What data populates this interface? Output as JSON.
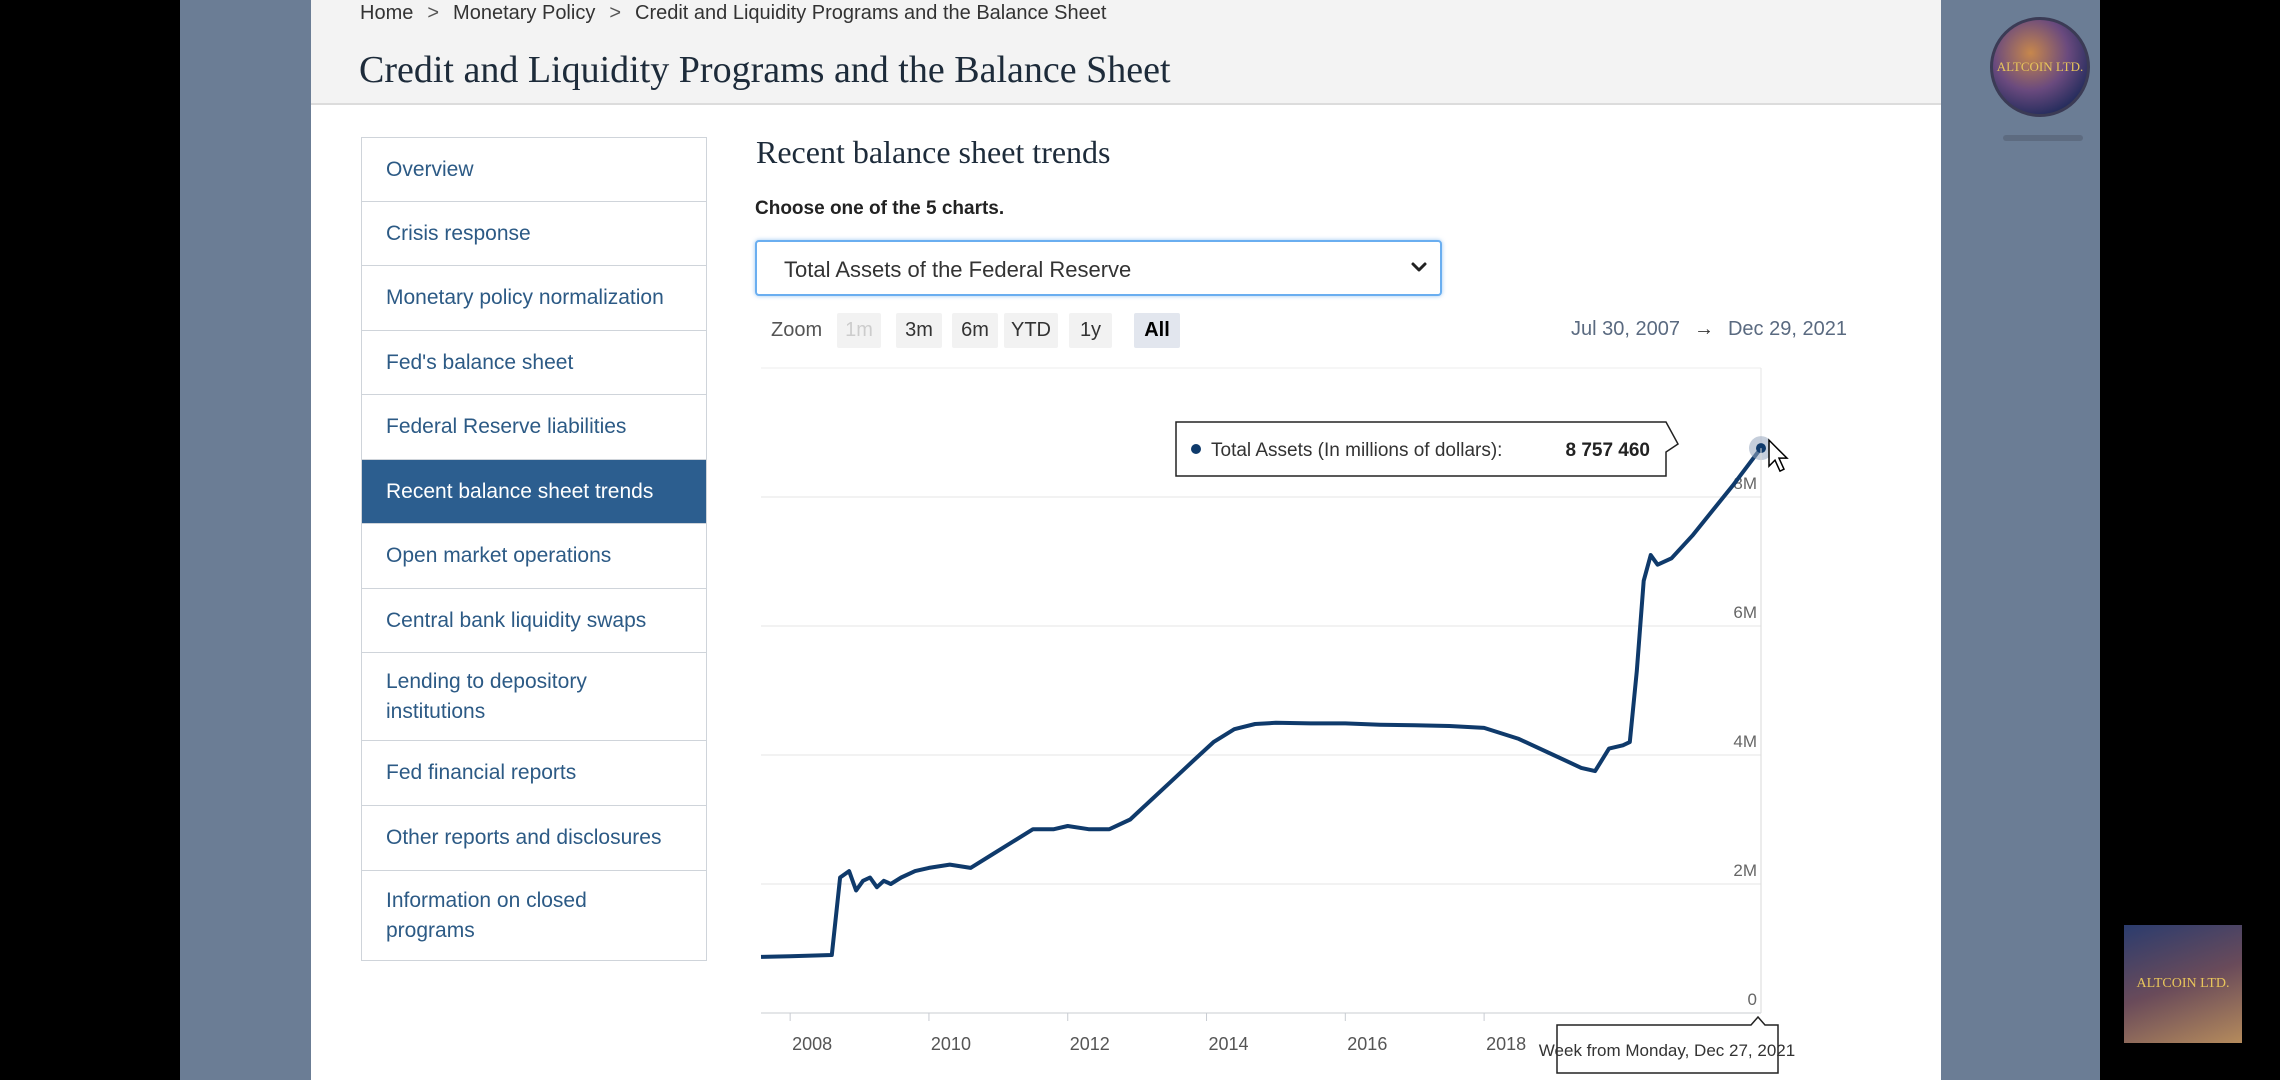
{
  "breadcrumb": [
    "Home",
    "Monetary Policy",
    "Credit and Liquidity Programs and the Balance Sheet"
  ],
  "page_title": "Credit and Liquidity Programs and the Balance Sheet",
  "sidebar": {
    "items": [
      {
        "label": "Overview",
        "active": false
      },
      {
        "label": "Crisis response",
        "active": false
      },
      {
        "label": "Monetary policy normalization",
        "active": false
      },
      {
        "label": "Fed's balance sheet",
        "active": false
      },
      {
        "label": "Federal Reserve liabilities",
        "active": false
      },
      {
        "label": "Recent balance sheet trends",
        "active": true
      },
      {
        "label": "Open market operations",
        "active": false
      },
      {
        "label": "Central bank liquidity swaps",
        "active": false
      },
      {
        "label": "Lending to depository institutions",
        "active": false
      },
      {
        "label": "Fed financial reports",
        "active": false
      },
      {
        "label": "Other reports and disclosures",
        "active": false
      },
      {
        "label": "Information on closed programs",
        "active": false
      }
    ]
  },
  "main": {
    "section_title": "Recent balance sheet trends",
    "choose_label": "Choose one of the 5 charts.",
    "select_value": "Total Assets of the Federal Reserve",
    "zoom_label": "Zoom",
    "zoom_buttons": [
      {
        "label": "1m",
        "state": "disabled"
      },
      {
        "label": "3m",
        "state": "normal"
      },
      {
        "label": "6m",
        "state": "normal"
      },
      {
        "label": "YTD",
        "state": "normal"
      },
      {
        "label": "1y",
        "state": "normal"
      },
      {
        "label": "All",
        "state": "active"
      }
    ],
    "date_from": "Jul 30, 2007",
    "date_arrow": "→",
    "date_to": "Dec 29, 2021"
  },
  "chart_data": {
    "type": "line",
    "title": "",
    "xlabel": "",
    "ylabel": "",
    "x_ticks": [
      "2008",
      "2010",
      "2012",
      "2014",
      "2016",
      "2018"
    ],
    "y_ticks": [
      "0",
      "2M",
      "4M",
      "6M",
      "8M"
    ],
    "xlim": [
      2007.58,
      2021.99
    ],
    "ylim": [
      0,
      10000000
    ],
    "grid": "horizontal",
    "legend": "none",
    "series_color": "#0f3a6b",
    "series": [
      {
        "name": "Total Assets (In millions of dollars)",
        "x": [
          2007.58,
          2008.0,
          2008.6,
          2008.72,
          2008.85,
          2008.95,
          2009.05,
          2009.15,
          2009.25,
          2009.35,
          2009.45,
          2009.6,
          2009.8,
          2010.0,
          2010.3,
          2010.6,
          2010.9,
          2011.2,
          2011.5,
          2011.8,
          2012.0,
          2012.3,
          2012.6,
          2012.9,
          2013.2,
          2013.5,
          2013.8,
          2014.1,
          2014.4,
          2014.7,
          2015.0,
          2015.5,
          2016.0,
          2016.5,
          2017.0,
          2017.5,
          2018.0,
          2018.5,
          2019.0,
          2019.4,
          2019.6,
          2019.8,
          2020.0,
          2020.1,
          2020.2,
          2020.3,
          2020.4,
          2020.5,
          2020.7,
          2021.0,
          2021.3,
          2021.6,
          2021.99
        ],
        "y": [
          870000,
          880000,
          900000,
          2100000,
          2200000,
          1900000,
          2050000,
          2100000,
          1950000,
          2050000,
          2000000,
          2100000,
          2200000,
          2250000,
          2300000,
          2250000,
          2450000,
          2650000,
          2850000,
          2850000,
          2900000,
          2850000,
          2850000,
          3000000,
          3300000,
          3600000,
          3900000,
          4200000,
          4400000,
          4480000,
          4500000,
          4490000,
          4490000,
          4470000,
          4460000,
          4450000,
          4420000,
          4250000,
          4000000,
          3800000,
          3750000,
          4100000,
          4150000,
          4200000,
          5300000,
          6700000,
          7100000,
          6950000,
          7050000,
          7400000,
          7800000,
          8200000,
          8757460
        ]
      }
    ],
    "tooltip": {
      "label": "Total Assets (In millions of dollars):",
      "value": "8 757 460"
    },
    "x_tooltip": "Week from Monday, Dec 27, 2021"
  },
  "logos": {
    "top_right": "ALTCOIN LTD.",
    "bottom_right": "ALTCOIN LTD."
  }
}
